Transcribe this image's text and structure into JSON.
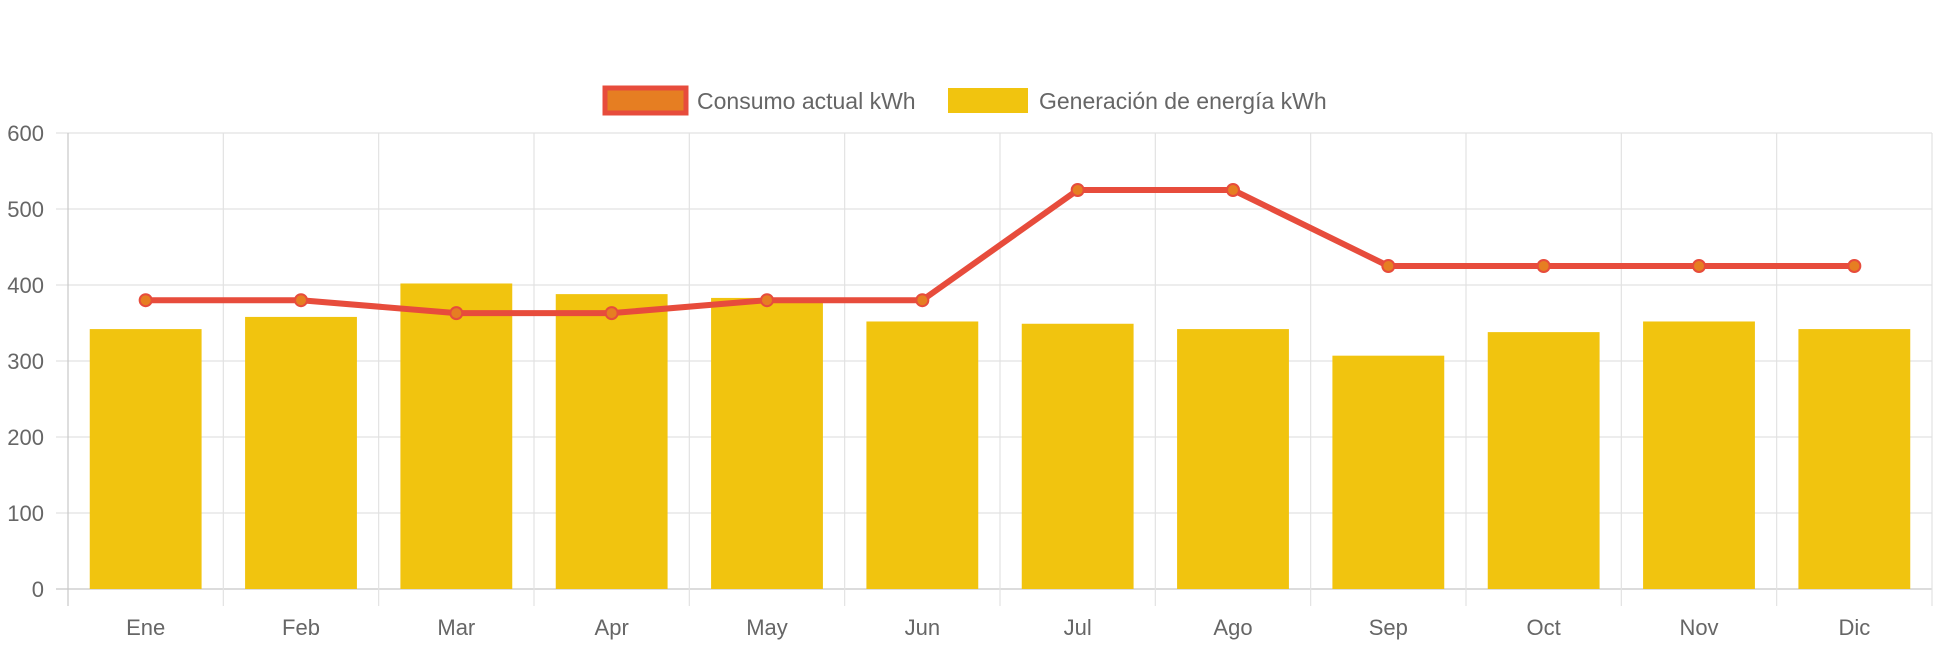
{
  "chart_data": {
    "type": "bar",
    "categories": [
      "Ene",
      "Feb",
      "Mar",
      "Apr",
      "May",
      "Jun",
      "Jul",
      "Ago",
      "Sep",
      "Oct",
      "Nov",
      "Dic"
    ],
    "series": [
      {
        "name": "Consumo actual kWh",
        "type": "line",
        "color": "#e74c3c",
        "point_color": "#e67e22",
        "values": [
          380,
          380,
          363,
          363,
          380,
          380,
          525,
          525,
          425,
          425,
          425,
          425
        ]
      },
      {
        "name": "Generación de energía kWh",
        "type": "bar",
        "color": "#f1c40f",
        "values": [
          342,
          358,
          402,
          388,
          383,
          352,
          349,
          342,
          307,
          338,
          352,
          342
        ]
      }
    ],
    "yticks": [
      "0",
      "100",
      "200",
      "300",
      "400",
      "500",
      "600"
    ],
    "ylim": [
      0,
      600
    ],
    "title": "",
    "xlabel": "",
    "ylabel": "",
    "grid": true,
    "legend": "top-center"
  }
}
